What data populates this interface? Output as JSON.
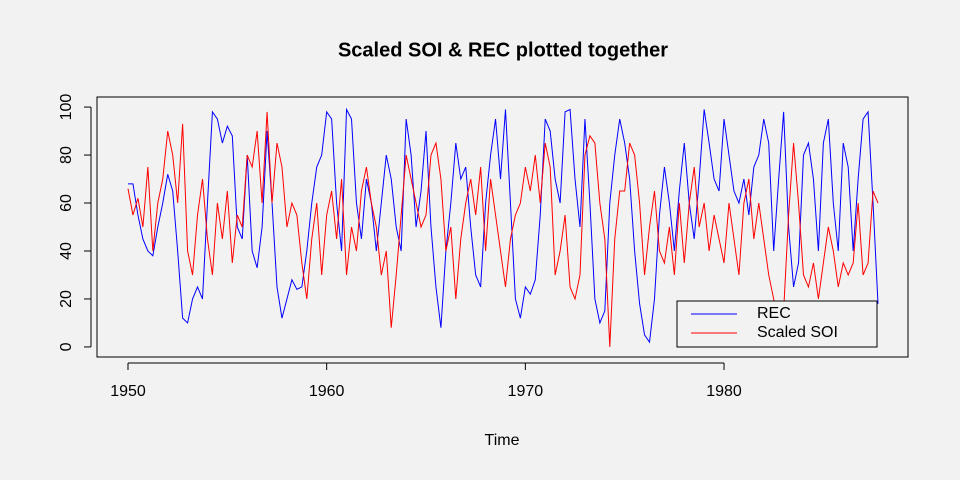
{
  "chart_data": {
    "type": "line",
    "title": "Scaled SOI & REC plotted together",
    "xlabel": "Time",
    "x": [
      1950,
      1950.25,
      1950.5,
      1950.75,
      1951,
      1951.25,
      1951.5,
      1951.75,
      1952,
      1952.25,
      1952.5,
      1952.75,
      1953,
      1953.25,
      1953.5,
      1953.75,
      1954,
      1954.25,
      1954.5,
      1954.75,
      1955,
      1955.25,
      1955.5,
      1955.75,
      1956,
      1956.25,
      1956.5,
      1956.75,
      1957,
      1957.25,
      1957.5,
      1957.75,
      1958,
      1958.25,
      1958.5,
      1958.75,
      1959,
      1959.25,
      1959.5,
      1959.75,
      1960,
      1960.25,
      1960.5,
      1960.75,
      1961,
      1961.25,
      1961.5,
      1961.75,
      1962,
      1962.25,
      1962.5,
      1962.75,
      1963,
      1963.25,
      1963.5,
      1963.75,
      1964,
      1964.25,
      1964.5,
      1964.75,
      1965,
      1965.25,
      1965.5,
      1965.75,
      1966,
      1966.25,
      1966.5,
      1966.75,
      1967,
      1967.25,
      1967.5,
      1967.75,
      1968,
      1968.25,
      1968.5,
      1968.75,
      1969,
      1969.25,
      1969.5,
      1969.75,
      1970,
      1970.25,
      1970.5,
      1970.75,
      1971,
      1971.25,
      1971.5,
      1971.75,
      1972,
      1972.25,
      1972.5,
      1972.75,
      1973,
      1973.25,
      1973.5,
      1973.75,
      1974,
      1974.25,
      1974.5,
      1974.75,
      1975,
      1975.25,
      1975.5,
      1975.75,
      1976,
      1976.25,
      1976.5,
      1976.75,
      1977,
      1977.25,
      1977.5,
      1977.75,
      1978,
      1978.25,
      1978.5,
      1978.75,
      1979,
      1979.25,
      1979.5,
      1979.75,
      1980,
      1980.25,
      1980.5,
      1980.75,
      1981,
      1981.25,
      1981.5,
      1981.75,
      1982,
      1982.25,
      1982.5,
      1982.75,
      1983,
      1983.25,
      1983.5,
      1983.75,
      1984,
      1984.25,
      1984.5,
      1984.75,
      1985,
      1985.25,
      1985.5,
      1985.75,
      1986,
      1986.25,
      1986.5,
      1986.75,
      1987,
      1987.25,
      1987.5,
      1987.75
    ],
    "series": [
      {
        "name": "REC",
        "color": "#0000ff",
        "values": [
          68,
          68,
          55,
          45,
          40,
          38,
          50,
          60,
          72,
          65,
          40,
          12,
          10,
          20,
          25,
          20,
          60,
          98,
          95,
          85,
          92,
          88,
          50,
          45,
          80,
          40,
          33,
          50,
          90,
          60,
          25,
          12,
          20,
          28,
          24,
          25,
          40,
          60,
          75,
          80,
          98,
          95,
          60,
          40,
          99,
          95,
          60,
          45,
          70,
          60,
          40,
          60,
          80,
          70,
          50,
          40,
          95,
          80,
          50,
          65,
          90,
          50,
          25,
          8,
          40,
          60,
          85,
          70,
          75,
          50,
          30,
          25,
          60,
          80,
          95,
          70,
          99,
          60,
          20,
          12,
          25,
          22,
          28,
          55,
          95,
          90,
          70,
          60,
          98,
          99,
          70,
          50,
          95,
          60,
          20,
          10,
          15,
          60,
          80,
          95,
          85,
          70,
          40,
          18,
          5,
          2,
          20,
          55,
          75,
          60,
          40,
          65,
          85,
          60,
          45,
          70,
          99,
          85,
          70,
          65,
          95,
          80,
          65,
          60,
          70,
          55,
          75,
          80,
          95,
          85,
          40,
          70,
          98,
          50,
          25,
          35,
          80,
          85,
          70,
          40,
          85,
          95,
          60,
          40,
          85,
          75,
          40,
          70,
          95,
          98,
          60,
          18
        ]
      },
      {
        "name": "Scaled SOI",
        "color": "#ff0000",
        "values": [
          66,
          55,
          62,
          50,
          75,
          40,
          60,
          70,
          90,
          80,
          60,
          93,
          40,
          30,
          55,
          70,
          45,
          30,
          60,
          45,
          65,
          35,
          55,
          50,
          80,
          75,
          90,
          60,
          98,
          60,
          85,
          75,
          50,
          60,
          55,
          35,
          20,
          45,
          60,
          30,
          55,
          65,
          45,
          70,
          30,
          50,
          40,
          65,
          75,
          60,
          50,
          30,
          40,
          8,
          30,
          55,
          80,
          70,
          60,
          50,
          55,
          80,
          85,
          70,
          40,
          50,
          20,
          45,
          60,
          70,
          55,
          75,
          40,
          70,
          55,
          40,
          25,
          45,
          55,
          60,
          75,
          65,
          80,
          60,
          85,
          75,
          30,
          40,
          55,
          25,
          20,
          30,
          80,
          88,
          85,
          60,
          45,
          0,
          45,
          65,
          65,
          85,
          80,
          60,
          30,
          50,
          65,
          40,
          35,
          50,
          30,
          60,
          35,
          60,
          75,
          50,
          60,
          40,
          55,
          45,
          35,
          60,
          45,
          30,
          60,
          70,
          45,
          60,
          45,
          30,
          20,
          10,
          15,
          55,
          85,
          60,
          30,
          25,
          35,
          20,
          35,
          50,
          40,
          25,
          35,
          30,
          35,
          60,
          30,
          35,
          65,
          60
        ]
      }
    ],
    "xlim": [
      1948.44,
      1989.26
    ],
    "ylim": [
      -4.2,
      104.2
    ],
    "xticks": [
      1950,
      1960,
      1970,
      1980
    ],
    "yticks": [
      0,
      20,
      40,
      60,
      80,
      100
    ],
    "legend": "bottom-right"
  }
}
